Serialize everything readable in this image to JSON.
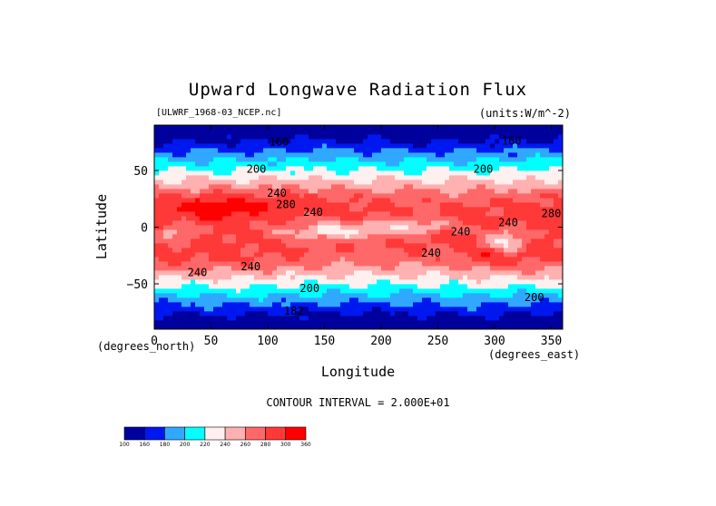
{
  "chart_data": {
    "type": "heatmap",
    "title": "Upward Longwave Radiation Flux",
    "subtitle_left": "[ULWRF_1968-03_NCEP.nc]",
    "subtitle_right": "(units:W/m^-2)",
    "xlabel": "Longitude",
    "ylabel": "Latitude",
    "x_unit": "(degrees_east)",
    "y_unit": "(degrees_north)",
    "xlim": [
      0,
      360
    ],
    "ylim": [
      -90,
      90
    ],
    "xticks": [
      0,
      50,
      100,
      150,
      200,
      250,
      300,
      350
    ],
    "yticks": [
      -50,
      0,
      50
    ],
    "contour_interval_text": "CONTOUR INTERVAL = 2.000E+01",
    "contour_labels": [
      {
        "text": "160",
        "lon": 315,
        "lat": 73
      },
      {
        "text": "160",
        "lon": 110,
        "lat": 72
      },
      {
        "text": "200",
        "lon": 90,
        "lat": 48
      },
      {
        "text": "200",
        "lon": 290,
        "lat": 48
      },
      {
        "text": "240",
        "lon": 108,
        "lat": 27
      },
      {
        "text": "280",
        "lon": 116,
        "lat": 17
      },
      {
        "text": "240",
        "lon": 140,
        "lat": 10
      },
      {
        "text": "240",
        "lon": 270,
        "lat": -7
      },
      {
        "text": "240",
        "lon": 312,
        "lat": 1
      },
      {
        "text": "280",
        "lon": 350,
        "lat": 9
      },
      {
        "text": "240",
        "lon": 244,
        "lat": -26
      },
      {
        "text": "240",
        "lon": 85,
        "lat": -38
      },
      {
        "text": "240",
        "lon": 38,
        "lat": -43
      },
      {
        "text": "200",
        "lon": 137,
        "lat": -57
      },
      {
        "text": "200",
        "lon": 335,
        "lat": -65
      },
      {
        "text": "182",
        "lon": 123,
        "lat": -77
      }
    ],
    "colorbar": {
      "levels": [
        100,
        160,
        180,
        200,
        220,
        240,
        260,
        280,
        300,
        360
      ],
      "labels": [
        "100",
        "160",
        "180",
        "200",
        "220",
        "240",
        "260",
        "280",
        "300",
        "360"
      ],
      "colors": [
        "#00009c",
        "#0018f0",
        "#30a8ff",
        "#00ffff",
        "#fff0f0",
        "#ffb0b0",
        "#ff6868",
        "#ff3838",
        "#ff0000"
      ]
    }
  }
}
